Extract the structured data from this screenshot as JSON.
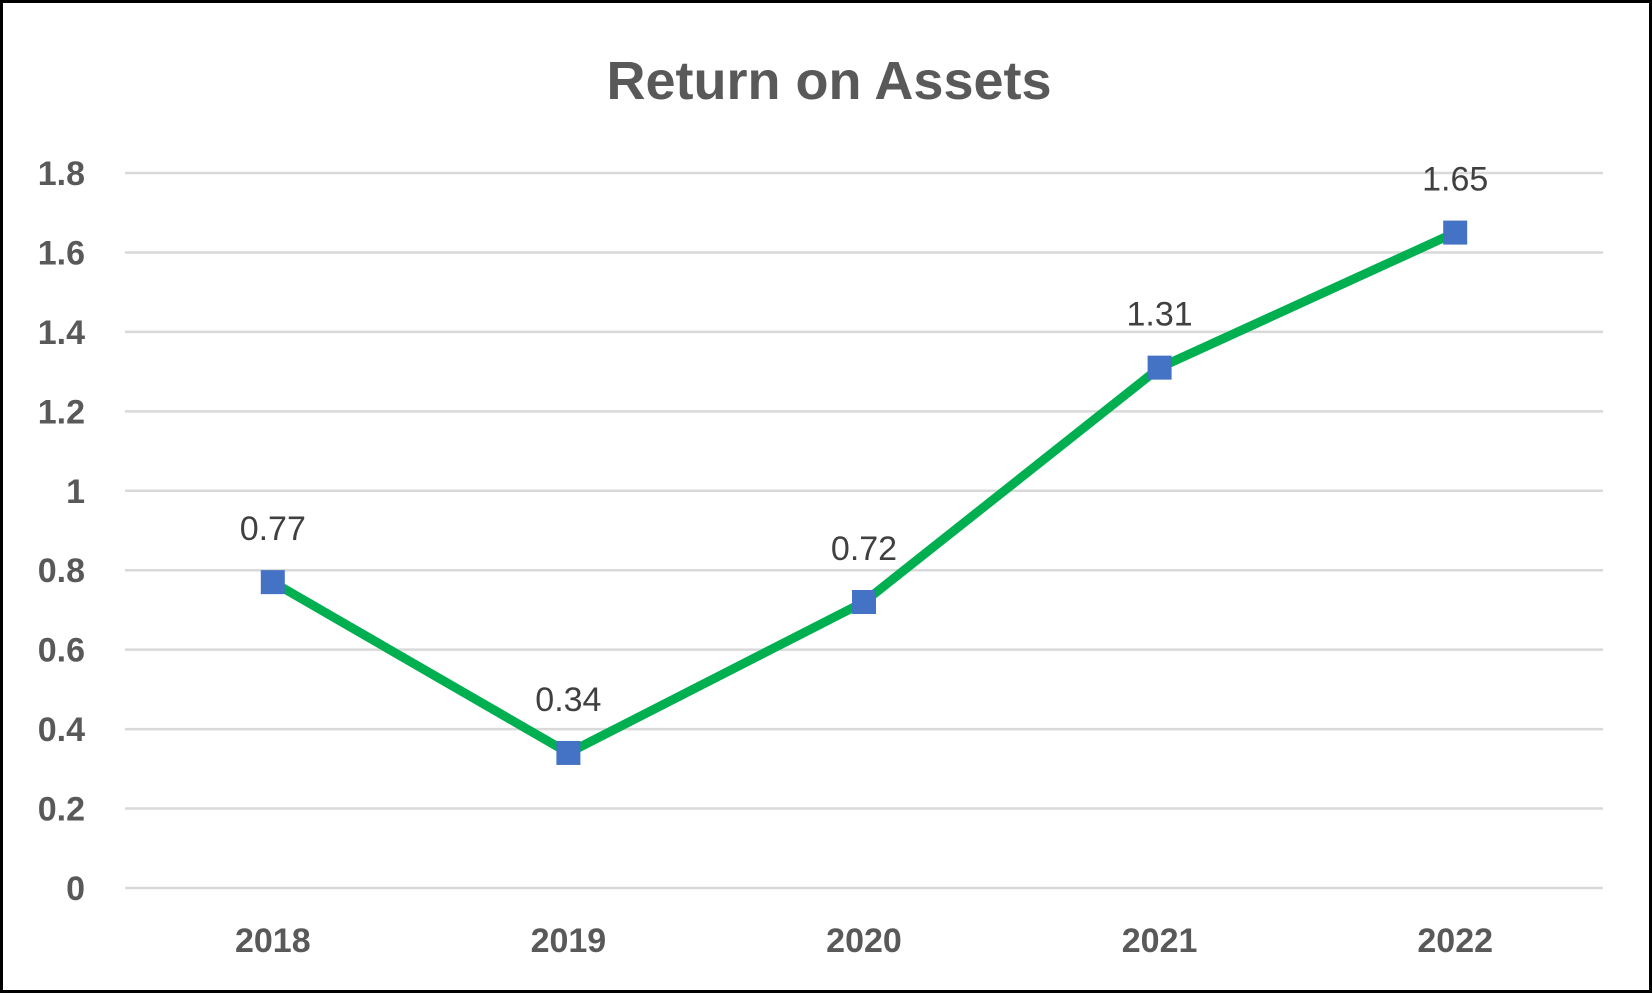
{
  "chart_data": {
    "type": "line",
    "title": "Return on Assets",
    "xlabel": "",
    "ylabel": "",
    "categories": [
      "2018",
      "2019",
      "2020",
      "2021",
      "2022"
    ],
    "series": [
      {
        "values": [
          0.77,
          0.34,
          0.72,
          1.31,
          1.65
        ],
        "data_labels": [
          "0.77",
          "0.34",
          "0.72",
          "1.31",
          "1.65"
        ],
        "line_color": "#00b050",
        "marker": "square",
        "marker_color": "#4472c4"
      }
    ],
    "ylim": [
      0,
      1.8
    ],
    "y_ticks": [
      0,
      0.2,
      0.4,
      0.6,
      0.8,
      1,
      1.2,
      1.4,
      1.6,
      1.8
    ],
    "y_tick_labels": [
      "0",
      "0.2",
      "0.4",
      "0.6",
      "0.8",
      "1",
      "1.2",
      "1.4",
      "1.6",
      "1.8"
    ],
    "grid": true,
    "legend": "none"
  }
}
